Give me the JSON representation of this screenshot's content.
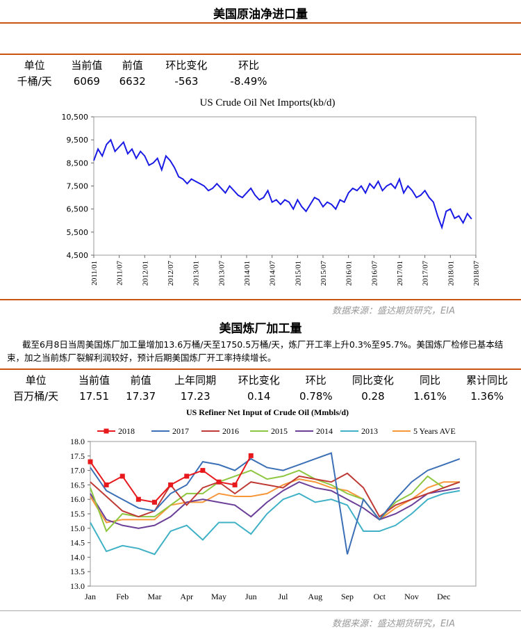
{
  "section1": {
    "title": "美国原油净进口量",
    "table": {
      "headers": [
        "单位",
        "当前值",
        "前值",
        "环比变化",
        "环比"
      ],
      "rows": [
        [
          "千桶/天",
          "6069",
          "6632",
          "-563",
          "-8.49%"
        ]
      ]
    }
  },
  "chart_data": [
    {
      "type": "line",
      "title": "US Crude Oil Net Imports(kb/d)",
      "color": "#1a1ae6",
      "grid": false,
      "xlim": [
        "2011/01",
        "2018/07"
      ],
      "xticks": [
        "2011/01",
        "2011/07",
        "2012/01",
        "2012/07",
        "2013/01",
        "2013/07",
        "2014/01",
        "2014/07",
        "2015/01",
        "2015/07",
        "2016/01",
        "2016/07",
        "2017/01",
        "2017/07",
        "2018/01",
        "2018/07"
      ],
      "ylim": [
        4500,
        10500
      ],
      "yticks": [
        {
          "value": 4500,
          "label": "4,500"
        },
        {
          "value": 5500,
          "label": "5,500"
        },
        {
          "value": 6500,
          "label": "6,500"
        },
        {
          "value": 7500,
          "label": "7,500"
        },
        {
          "value": 8500,
          "label": "8,500"
        },
        {
          "value": 9500,
          "label": "9,500"
        },
        {
          "value": 10500,
          "label": "10,500"
        }
      ],
      "x": [
        "2011/01",
        "2011/02",
        "2011/03",
        "2011/04",
        "2011/05",
        "2011/06",
        "2011/07",
        "2011/08",
        "2011/09",
        "2011/10",
        "2011/11",
        "2011/12",
        "2012/01",
        "2012/02",
        "2012/03",
        "2012/04",
        "2012/05",
        "2012/06",
        "2012/07",
        "2012/08",
        "2012/09",
        "2012/10",
        "2012/11",
        "2012/12",
        "2013/01",
        "2013/02",
        "2013/03",
        "2013/04",
        "2013/05",
        "2013/06",
        "2013/07",
        "2013/08",
        "2013/09",
        "2013/10",
        "2013/11",
        "2013/12",
        "2014/01",
        "2014/02",
        "2014/03",
        "2014/04",
        "2014/05",
        "2014/06",
        "2014/07",
        "2014/08",
        "2014/09",
        "2014/10",
        "2014/11",
        "2014/12",
        "2015/01",
        "2015/02",
        "2015/03",
        "2015/04",
        "2015/05",
        "2015/06",
        "2015/07",
        "2015/08",
        "2015/09",
        "2015/10",
        "2015/11",
        "2015/12",
        "2016/01",
        "2016/02",
        "2016/03",
        "2016/04",
        "2016/05",
        "2016/06",
        "2016/07",
        "2016/08",
        "2016/09",
        "2016/10",
        "2016/11",
        "2016/12",
        "2017/01",
        "2017/02",
        "2017/03",
        "2017/04",
        "2017/05",
        "2017/06",
        "2017/07",
        "2017/08",
        "2017/09",
        "2017/10",
        "2017/11",
        "2017/12",
        "2018/01",
        "2018/02",
        "2018/03",
        "2018/04",
        "2018/05",
        "2018/06"
      ],
      "values": [
        8600,
        9100,
        8800,
        9300,
        9500,
        9000,
        9200,
        9400,
        8900,
        9100,
        8700,
        9000,
        8800,
        8400,
        8500,
        8700,
        8200,
        8800,
        8600,
        8300,
        7900,
        7800,
        7600,
        7800,
        7700,
        7600,
        7500,
        7300,
        7400,
        7600,
        7400,
        7200,
        7500,
        7300,
        7100,
        7000,
        7200,
        7400,
        7100,
        6900,
        7000,
        7300,
        6800,
        6900,
        6700,
        6900,
        6800,
        6500,
        6900,
        6600,
        6400,
        6700,
        7000,
        6900,
        6600,
        6800,
        6700,
        6500,
        6900,
        6800,
        7200,
        7400,
        7300,
        7500,
        7200,
        7600,
        7400,
        7700,
        7300,
        7500,
        7600,
        7400,
        7800,
        7200,
        7500,
        7300,
        7000,
        7100,
        7300,
        7000,
        6800,
        6200,
        5700,
        6400,
        6500,
        6100,
        6200,
        5900,
        6300,
        6069
      ]
    },
    {
      "type": "line",
      "title": "US Refiner Net Input of Crude Oil (Mmbls/d)",
      "grid": false,
      "categories": [
        "Jan",
        null,
        "Feb",
        null,
        "Mar",
        null,
        "Apr",
        null,
        "May",
        null,
        "Jun",
        null,
        "Jul",
        null,
        "Aug",
        null,
        "Sep",
        null,
        "Oct",
        null,
        "Nov",
        null,
        "Dec",
        null
      ],
      "ylim": [
        13,
        18
      ],
      "yticks": [
        {
          "value": 13,
          "label": "13.0"
        },
        {
          "value": 13.5,
          "label": "13.5"
        },
        {
          "value": 14,
          "label": "14.0"
        },
        {
          "value": 14.5,
          "label": "14.5"
        },
        {
          "value": 15,
          "label": "15.0"
        },
        {
          "value": 15.5,
          "label": "15.5"
        },
        {
          "value": 16,
          "label": "16.0"
        },
        {
          "value": 16.5,
          "label": "16.5"
        },
        {
          "value": 17,
          "label": "17.0"
        },
        {
          "value": 17.5,
          "label": "17.5"
        },
        {
          "value": 18,
          "label": "18.0"
        }
      ],
      "series": [
        {
          "name": "2018",
          "color": "#e8191c",
          "marker": "square",
          "values": [
            17.3,
            16.5,
            16.8,
            16.0,
            15.9,
            16.5,
            16.8,
            17.0,
            16.6,
            16.5,
            17.51,
            null,
            null,
            null,
            null,
            null,
            null,
            null,
            null,
            null,
            null,
            null,
            null,
            null
          ]
        },
        {
          "name": "2017",
          "color": "#3b6fb6",
          "values": [
            17.1,
            16.3,
            16.0,
            15.7,
            15.6,
            16.2,
            16.5,
            17.3,
            17.2,
            17.0,
            17.4,
            17.1,
            17.0,
            17.2,
            17.4,
            17.6,
            14.1,
            16.0,
            15.3,
            16.0,
            16.6,
            17.0,
            17.2,
            17.4
          ]
        },
        {
          "name": "2016",
          "color": "#bf3a35",
          "values": [
            16.6,
            16.1,
            15.6,
            15.4,
            15.6,
            16.5,
            15.8,
            16.4,
            16.6,
            16.2,
            16.6,
            16.5,
            16.4,
            16.8,
            16.7,
            16.6,
            16.9,
            16.4,
            15.4,
            15.8,
            16.0,
            16.2,
            16.4,
            16.6
          ]
        },
        {
          "name": "2015",
          "color": "#8dc63f",
          "values": [
            16.4,
            14.9,
            15.5,
            15.4,
            15.4,
            15.8,
            16.2,
            16.2,
            16.6,
            16.8,
            17.0,
            16.7,
            16.8,
            17.0,
            16.7,
            16.5,
            16.2,
            16.0,
            15.3,
            15.9,
            16.2,
            16.8,
            16.4,
            16.6
          ]
        },
        {
          "name": "2014",
          "color": "#6b3f98",
          "values": [
            16.2,
            15.3,
            15.1,
            15.0,
            15.1,
            15.4,
            15.9,
            16.0,
            15.9,
            15.8,
            15.4,
            15.9,
            16.3,
            16.6,
            16.4,
            16.3,
            16.0,
            15.7,
            15.3,
            15.5,
            15.8,
            16.2,
            16.3,
            16.4
          ]
        },
        {
          "name": "2013",
          "color": "#3fb1c6",
          "values": [
            15.2,
            14.2,
            14.4,
            14.3,
            14.1,
            14.9,
            15.1,
            14.6,
            15.2,
            15.2,
            14.8,
            15.5,
            16.0,
            16.2,
            15.9,
            16.0,
            15.8,
            14.9,
            14.9,
            15.1,
            15.5,
            16.0,
            16.2,
            16.3
          ]
        },
        {
          "name": "5 Years AVE",
          "color": "#f7973a",
          "values": [
            16.1,
            15.2,
            15.3,
            15.3,
            15.3,
            15.8,
            15.9,
            15.9,
            16.2,
            16.1,
            16.1,
            16.2,
            16.5,
            16.7,
            16.6,
            16.4,
            16.3,
            16.0,
            15.3,
            15.7,
            16.0,
            16.4,
            16.6,
            16.6
          ]
        }
      ]
    }
  ],
  "source1": "数据来源：盛达期货研究，EIA",
  "section2": {
    "title": "美国炼厂加工量",
    "note": "截至6月8日当周美国炼厂加工量增加13.6万桶/天至1750.5万桶/天，炼厂开工率上升0.3%至95.7%。美国炼厂检修已基本结束，加之当前炼厂裂解利润较好，预计后期美国炼厂开工率持续增长。",
    "table": {
      "headers": [
        "单位",
        "当前值",
        "前值",
        "上年同期",
        "环比变化",
        "环比",
        "同比变化",
        "同比",
        "累计同比"
      ],
      "rows": [
        [
          "百万桶/天",
          "17.51",
          "17.37",
          "17.23",
          "0.14",
          "0.78%",
          "0.28",
          "1.61%",
          "1.36%"
        ]
      ]
    }
  },
  "source2": "数据来源：盛达期货研究，EIA"
}
